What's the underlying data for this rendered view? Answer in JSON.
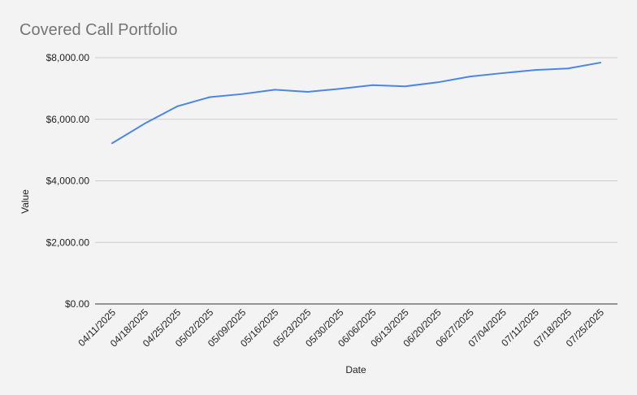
{
  "chart_data": {
    "type": "line",
    "title": "Covered Call Portfolio",
    "xlabel": "Date",
    "ylabel": "Value",
    "categories": [
      "04/11/2025",
      "04/18/2025",
      "04/25/2025",
      "05/02/2025",
      "05/09/2025",
      "05/16/2025",
      "05/23/2025",
      "05/30/2025",
      "06/06/2025",
      "06/13/2025",
      "06/20/2025",
      "06/27/2025",
      "07/04/2025",
      "07/11/2025",
      "07/18/2025",
      "07/25/2025"
    ],
    "series": [
      {
        "values": [
          5220,
          5860,
          6420,
          6720,
          6820,
          6960,
          6890,
          6990,
          7110,
          7070,
          7200,
          7390,
          7500,
          7600,
          7650,
          7840
        ],
        "color": "#4a86e8"
      }
    ],
    "ylim": [
      0,
      8000
    ],
    "yticks": [
      0,
      2000,
      4000,
      6000,
      8000
    ],
    "ytick_labels": [
      "$0.00",
      "$2,000.00",
      "$4,000.00",
      "$6,000.00",
      "$8,000.00"
    ],
    "grid": true,
    "legend": "none"
  }
}
